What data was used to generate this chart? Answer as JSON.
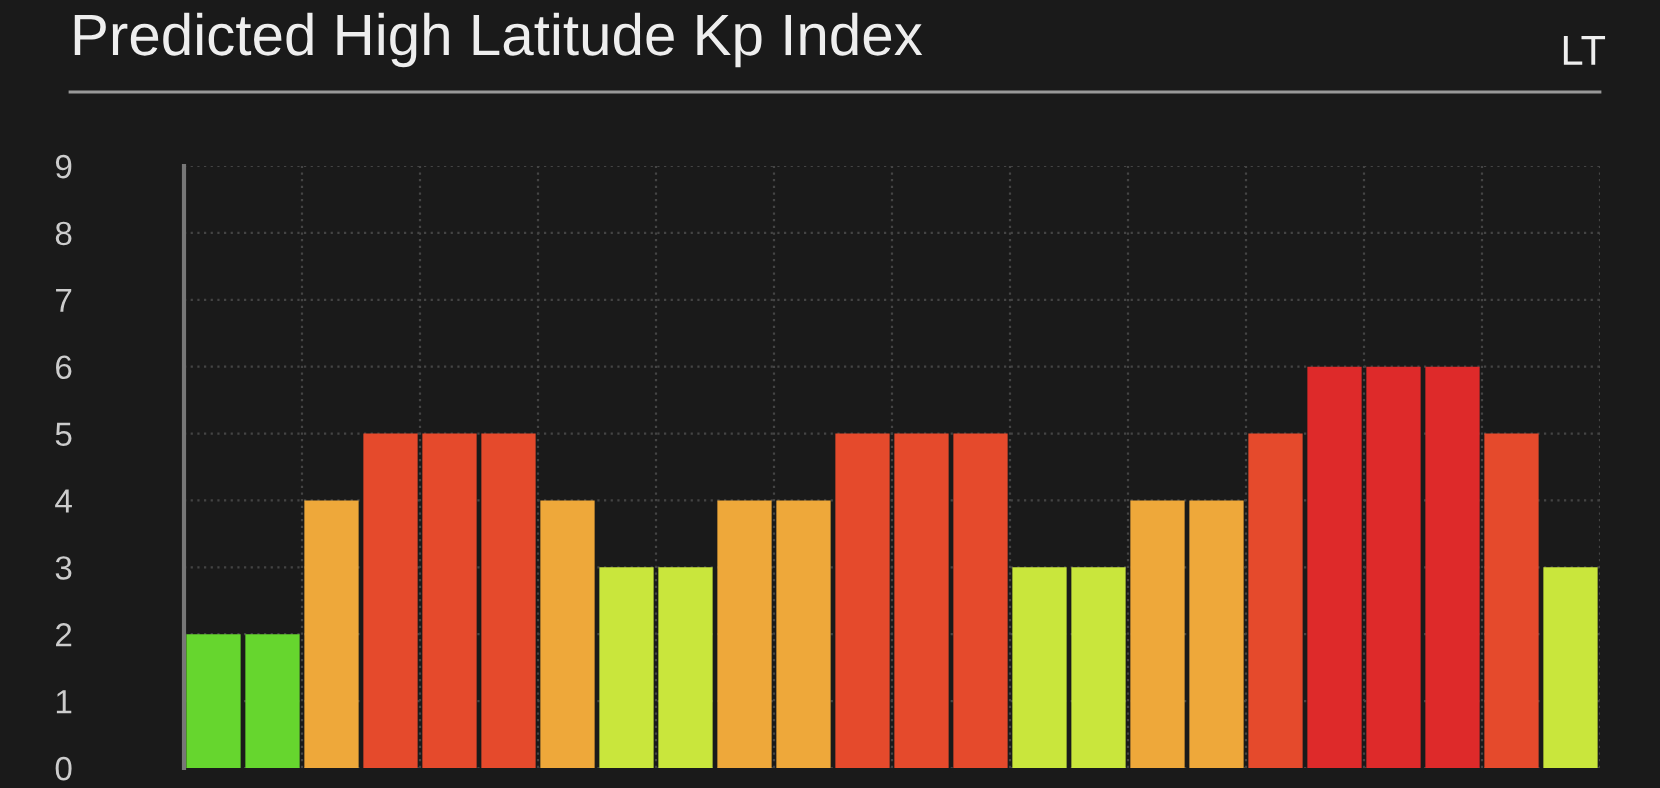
{
  "chart_data": {
    "type": "bar",
    "title": "Predicted High Latitude Kp Index",
    "annotations": [
      "LT"
    ],
    "categories": [
      null,
      null,
      null,
      null,
      null,
      null,
      null,
      null,
      null,
      null,
      null,
      null,
      null,
      null,
      null,
      null,
      null,
      null,
      null,
      null,
      null,
      null,
      null,
      null
    ],
    "values": [
      2,
      2,
      4,
      5,
      5,
      5,
      4,
      3,
      3,
      4,
      4,
      5,
      5,
      5,
      3,
      3,
      4,
      4,
      5,
      6,
      6,
      6,
      5,
      3
    ],
    "colors": [
      "#66d62e",
      "#66d62e",
      "#eea83a",
      "#e54a2c",
      "#e54a2c",
      "#e54a2c",
      "#eea83a",
      "#c9e63c",
      "#c9e63c",
      "#eea83a",
      "#eea83a",
      "#e54a2c",
      "#e54a2c",
      "#e54a2c",
      "#c9e63c",
      "#c9e63c",
      "#eea83a",
      "#eea83a",
      "#e54a2c",
      "#de2a2a",
      "#de2a2a",
      "#de2a2a",
      "#e54a2c",
      "#c9e63c"
    ],
    "ylim": [
      0,
      9
    ],
    "yticks": [
      0,
      1,
      2,
      3,
      4,
      5,
      6,
      7,
      8,
      9
    ],
    "grid": true
  }
}
